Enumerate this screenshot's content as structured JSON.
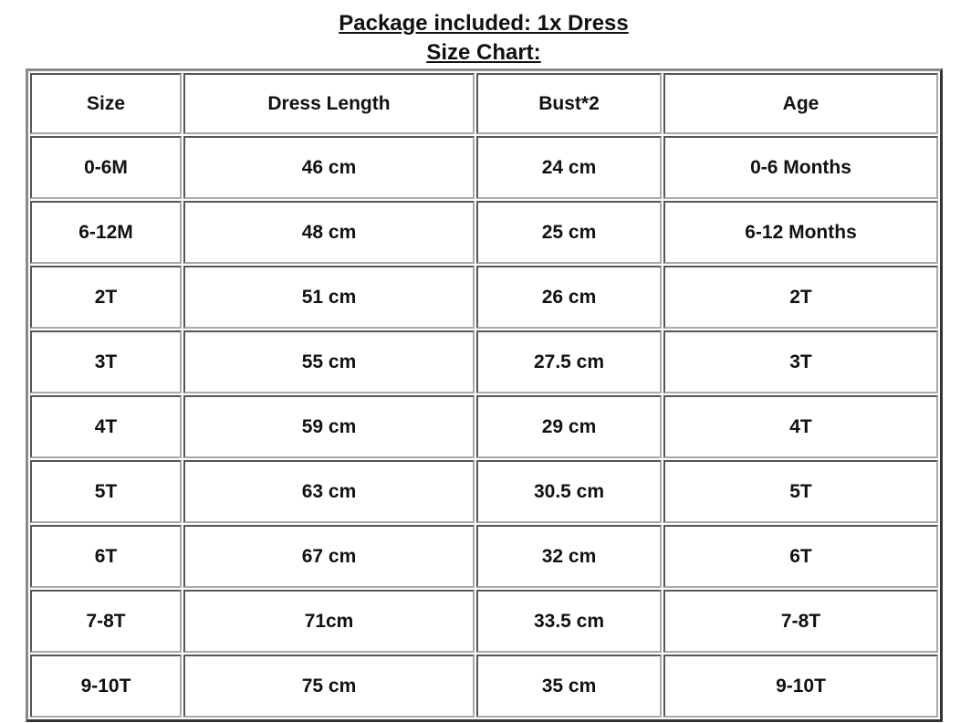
{
  "title": "Package included: 1x Dress",
  "subtitle": "Size Chart:",
  "table": {
    "headers": [
      "Size",
      "Dress Length",
      "Bust*2",
      "Age"
    ],
    "rows": [
      [
        "0-6M",
        "46 cm",
        "24 cm",
        "0-6 Months"
      ],
      [
        "6-12M",
        "48 cm",
        "25 cm",
        "6-12 Months"
      ],
      [
        "2T",
        "51 cm",
        "26 cm",
        "2T"
      ],
      [
        "3T",
        "55 cm",
        "27.5 cm",
        "3T"
      ],
      [
        "4T",
        "59 cm",
        "29 cm",
        "4T"
      ],
      [
        "5T",
        "63 cm",
        "30.5 cm",
        "5T"
      ],
      [
        "6T",
        "67 cm",
        "32 cm",
        "6T"
      ],
      [
        "7-8T",
        "71cm",
        "33.5 cm",
        "7-8T"
      ],
      [
        "9-10T",
        "75 cm",
        "35 cm",
        "9-10T"
      ]
    ]
  }
}
